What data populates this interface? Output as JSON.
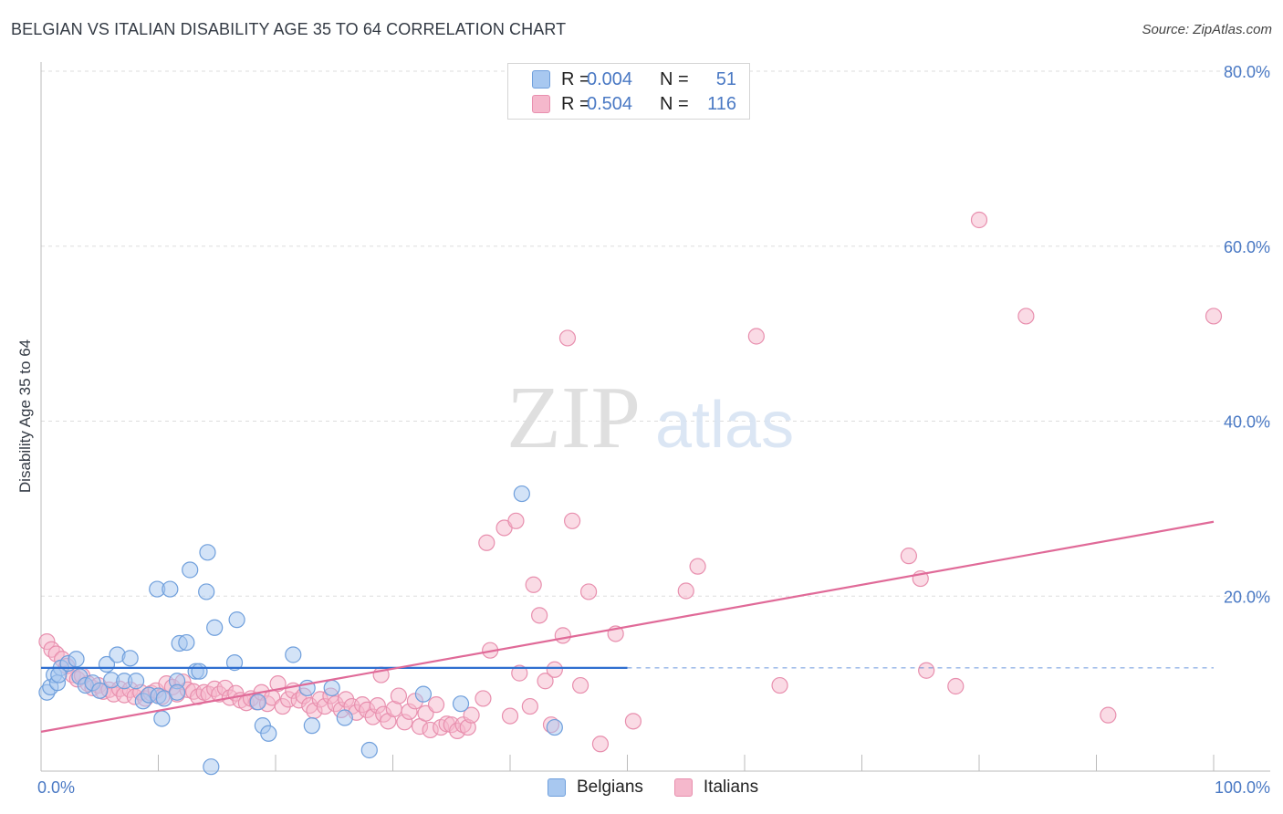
{
  "title": "BELGIAN VS ITALIAN DISABILITY AGE 35 TO 64 CORRELATION CHART",
  "source": "Source: ZipAtlas.com",
  "watermark": {
    "zip": "ZIP",
    "atlas": "atlas"
  },
  "colors": {
    "belgian_fill": "#a8c8f0",
    "belgian_stroke": "#6f9fdc",
    "belgian_line": "#2f6fd0",
    "italian_fill": "#f5b8cc",
    "italian_stroke": "#e88fae",
    "italian_line": "#e06a98",
    "axis_tick": "#4a79c4",
    "grid": "#dddddd"
  },
  "legend": {
    "rows": [
      {
        "series": "Belgians",
        "r_label": "R =",
        "r_value": "0.004",
        "n_label": "N =",
        "n_value": "51"
      },
      {
        "series": "Italians",
        "r_label": "R =",
        "r_value": "0.504",
        "n_label": "N =",
        "n_value": "116"
      }
    ]
  },
  "bottom_legend": {
    "belgians": "Belgians",
    "italians": "Italians"
  },
  "chart_data": {
    "type": "scatter",
    "title": "BELGIAN VS ITALIAN DISABILITY AGE 35 TO 64 CORRELATION CHART",
    "xlabel": "",
    "ylabel": "Disability Age 35 to 64",
    "xlim": [
      0,
      100
    ],
    "ylim": [
      0,
      80
    ],
    "x_tick_labels": [
      "0.0%",
      "100.0%"
    ],
    "y_tick_values": [
      20,
      40,
      60,
      80
    ],
    "y_tick_labels": [
      "20.0%",
      "40.0%",
      "60.0%",
      "80.0%"
    ],
    "series": [
      {
        "name": "Belgians",
        "trend": {
          "x": [
            0,
            50
          ],
          "y": [
            11.8,
            11.8
          ],
          "dashed_to": 100
        },
        "points": [
          [
            0.5,
            9.0
          ],
          [
            0.8,
            9.6
          ],
          [
            1.1,
            11.0
          ],
          [
            1.4,
            10.1
          ],
          [
            1.7,
            11.8
          ],
          [
            2.3,
            12.3
          ],
          [
            3.0,
            12.8
          ],
          [
            3.3,
            10.8
          ],
          [
            3.8,
            9.8
          ],
          [
            4.4,
            10.1
          ],
          [
            5.0,
            9.2
          ],
          [
            5.6,
            12.2
          ],
          [
            6.0,
            10.4
          ],
          [
            6.5,
            13.3
          ],
          [
            7.1,
            10.3
          ],
          [
            7.6,
            12.9
          ],
          [
            8.1,
            10.3
          ],
          [
            8.7,
            8.0
          ],
          [
            9.2,
            8.7
          ],
          [
            9.9,
            20.8
          ],
          [
            10.0,
            8.6
          ],
          [
            10.3,
            6.0
          ],
          [
            10.5,
            8.3
          ],
          [
            11.0,
            20.8
          ],
          [
            11.6,
            10.3
          ],
          [
            11.6,
            9.0
          ],
          [
            11.8,
            14.6
          ],
          [
            12.4,
            14.7
          ],
          [
            12.7,
            23.0
          ],
          [
            13.2,
            11.4
          ],
          [
            13.5,
            11.4
          ],
          [
            14.1,
            20.5
          ],
          [
            14.2,
            25.0
          ],
          [
            14.8,
            16.4
          ],
          [
            16.5,
            12.4
          ],
          [
            16.7,
            17.3
          ],
          [
            18.5,
            7.9
          ],
          [
            18.9,
            5.2
          ],
          [
            19.4,
            4.3
          ],
          [
            21.5,
            13.3
          ],
          [
            22.7,
            9.5
          ],
          [
            23.1,
            5.2
          ],
          [
            24.8,
            9.5
          ],
          [
            25.9,
            6.1
          ],
          [
            28.0,
            2.4
          ],
          [
            32.6,
            8.8
          ],
          [
            35.8,
            7.7
          ],
          [
            41.0,
            31.7
          ],
          [
            43.8,
            5.0
          ],
          [
            14.5,
            0.5
          ],
          [
            1.5,
            11.0
          ]
        ]
      },
      {
        "name": "Italians",
        "trend": {
          "x": [
            0,
            100
          ],
          "y": [
            4.5,
            28.5
          ]
        },
        "points": [
          [
            0.5,
            14.8
          ],
          [
            0.9,
            13.9
          ],
          [
            1.3,
            13.4
          ],
          [
            1.8,
            12.8
          ],
          [
            2.2,
            12.0
          ],
          [
            2.7,
            11.0
          ],
          [
            3.1,
            10.5
          ],
          [
            3.5,
            10.9
          ],
          [
            4.0,
            10.0
          ],
          [
            4.4,
            9.5
          ],
          [
            4.9,
            9.8
          ],
          [
            5.3,
            9.1
          ],
          [
            5.8,
            9.3
          ],
          [
            6.2,
            8.8
          ],
          [
            6.7,
            9.4
          ],
          [
            7.1,
            8.7
          ],
          [
            7.6,
            9.3
          ],
          [
            8.0,
            8.5
          ],
          [
            8.5,
            9.0
          ],
          [
            8.9,
            8.3
          ],
          [
            9.4,
            8.9
          ],
          [
            9.8,
            9.2
          ],
          [
            10.3,
            8.5
          ],
          [
            10.7,
            10.0
          ],
          [
            11.2,
            9.6
          ],
          [
            11.6,
            8.8
          ],
          [
            12.1,
            10.2
          ],
          [
            12.5,
            9.3
          ],
          [
            13.0,
            9.1
          ],
          [
            13.4,
            8.5
          ],
          [
            13.9,
            9.0
          ],
          [
            14.3,
            8.8
          ],
          [
            14.8,
            9.4
          ],
          [
            15.2,
            8.8
          ],
          [
            15.7,
            9.5
          ],
          [
            16.1,
            8.4
          ],
          [
            16.6,
            8.9
          ],
          [
            17.0,
            8.1
          ],
          [
            17.5,
            7.8
          ],
          [
            17.9,
            8.3
          ],
          [
            18.4,
            7.9
          ],
          [
            18.8,
            9.0
          ],
          [
            19.3,
            7.7
          ],
          [
            19.7,
            8.4
          ],
          [
            20.2,
            10.0
          ],
          [
            20.6,
            7.4
          ],
          [
            21.1,
            8.2
          ],
          [
            21.5,
            9.2
          ],
          [
            22.0,
            8.1
          ],
          [
            22.4,
            8.6
          ],
          [
            22.9,
            7.5
          ],
          [
            23.3,
            6.9
          ],
          [
            23.8,
            8.2
          ],
          [
            24.2,
            7.4
          ],
          [
            24.7,
            8.6
          ],
          [
            25.1,
            7.7
          ],
          [
            25.6,
            7.0
          ],
          [
            26.0,
            8.2
          ],
          [
            26.5,
            7.4
          ],
          [
            26.9,
            6.7
          ],
          [
            27.4,
            7.6
          ],
          [
            27.8,
            7.0
          ],
          [
            28.3,
            6.2
          ],
          [
            28.7,
            7.5
          ],
          [
            29.2,
            6.5
          ],
          [
            29.6,
            5.7
          ],
          [
            30.1,
            7.1
          ],
          [
            30.5,
            8.6
          ],
          [
            31.0,
            5.6
          ],
          [
            31.4,
            6.8
          ],
          [
            31.9,
            8.0
          ],
          [
            32.3,
            5.1
          ],
          [
            32.8,
            6.6
          ],
          [
            33.2,
            4.7
          ],
          [
            33.7,
            7.6
          ],
          [
            34.1,
            5.0
          ],
          [
            34.6,
            5.4
          ],
          [
            35.0,
            5.3
          ],
          [
            35.5,
            4.6
          ],
          [
            36.0,
            5.3
          ],
          [
            36.4,
            5.0
          ],
          [
            37.7,
            8.3
          ],
          [
            38.0,
            26.1
          ],
          [
            38.3,
            13.8
          ],
          [
            39.5,
            27.8
          ],
          [
            40.0,
            6.3
          ],
          [
            40.5,
            28.6
          ],
          [
            40.8,
            11.2
          ],
          [
            41.7,
            7.4
          ],
          [
            42.0,
            21.3
          ],
          [
            42.5,
            17.8
          ],
          [
            43.0,
            10.3
          ],
          [
            43.5,
            5.3
          ],
          [
            43.8,
            11.6
          ],
          [
            44.5,
            15.5
          ],
          [
            44.9,
            49.5
          ],
          [
            45.3,
            28.6
          ],
          [
            46.0,
            9.8
          ],
          [
            46.7,
            20.5
          ],
          [
            47.7,
            3.1
          ],
          [
            49.0,
            15.7
          ],
          [
            50.5,
            5.7
          ],
          [
            55.0,
            20.6
          ],
          [
            56.0,
            23.4
          ],
          [
            61.0,
            49.7
          ],
          [
            63.0,
            9.8
          ],
          [
            74.0,
            24.6
          ],
          [
            75.0,
            22.0
          ],
          [
            75.5,
            11.5
          ],
          [
            78.0,
            9.7
          ],
          [
            80.0,
            63.0
          ],
          [
            84.0,
            52.0
          ],
          [
            91.0,
            6.4
          ],
          [
            100.0,
            52.0
          ],
          [
            29.0,
            11.0
          ],
          [
            36.7,
            6.4
          ]
        ]
      }
    ]
  }
}
